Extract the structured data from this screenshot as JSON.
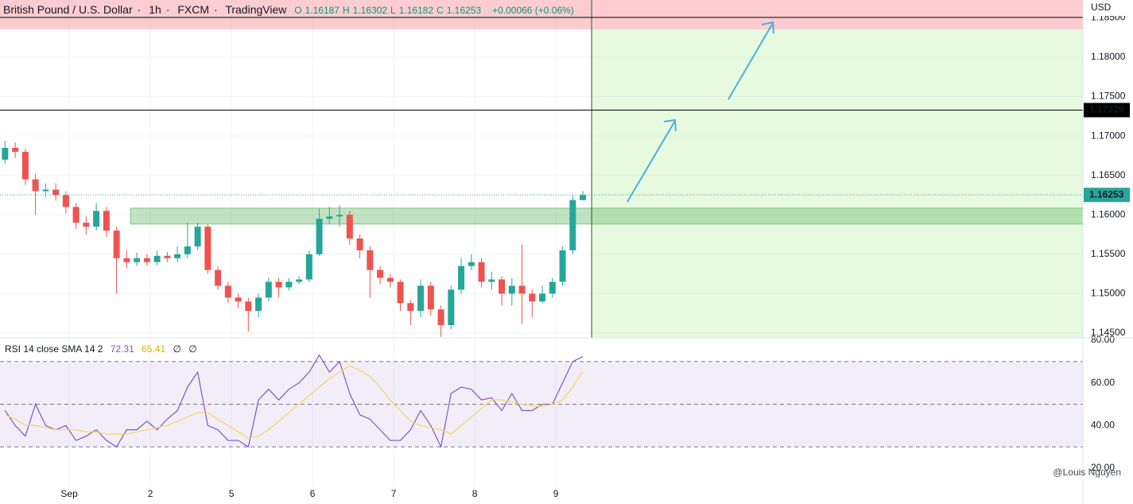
{
  "header": {
    "symbol": "British Pound / U.S. Dollar",
    "interval": "1h",
    "source": "FXCM",
    "platform": "TradingView",
    "ohlc_prefixes": [
      "O",
      "H",
      "L",
      "C"
    ],
    "change": "+0.00066 (+0.06%)"
  },
  "currency": "USD",
  "watermark": "@Louis Nguyen",
  "chart_data": [
    {
      "type": "candlestick",
      "up_color": "#26a69a",
      "down_color": "#ef5350",
      "x": [
        1.5,
        4.5,
        7.5,
        10.5,
        13.5,
        16.5,
        19.5,
        22.5,
        25.5,
        28.5,
        31.5,
        34.5,
        37.5,
        40.5,
        43.5,
        46.5,
        49.5,
        52.5,
        55.5,
        58.5,
        61.5,
        64.5,
        67.5,
        70.5,
        73.5,
        76.5,
        79.5,
        82.5,
        85.5,
        88.5,
        91.5,
        94.5,
        97.5,
        100.5,
        103.5,
        106.5,
        109.5,
        112.5,
        115.5,
        118.5,
        121.5,
        124.5,
        127.5,
        130.5,
        133.5,
        136.5,
        139.5,
        142.5,
        145.5,
        148.5,
        151.5,
        154.5,
        157.5,
        160.5,
        163.5,
        166.5,
        169.5,
        172.5
      ],
      "open": [
        1.167,
        1.1685,
        1.168,
        1.1645,
        1.163,
        1.1632,
        1.1625,
        1.161,
        1.159,
        1.1585,
        1.1605,
        1.158,
        1.1545,
        1.154,
        1.1545,
        1.154,
        1.1548,
        1.1545,
        1.155,
        1.156,
        1.1585,
        1.153,
        1.151,
        1.1495,
        1.149,
        1.1478,
        1.1495,
        1.1515,
        1.1508,
        1.1515,
        1.1518,
        1.155,
        1.1595,
        1.1598,
        1.16,
        1.157,
        1.1555,
        1.153,
        1.152,
        1.1515,
        1.1488,
        1.1478,
        1.151,
        1.148,
        1.146,
        1.1505,
        1.1535,
        1.154,
        1.1515,
        1.1518,
        1.15,
        1.151,
        1.15,
        1.149,
        1.15,
        1.1515,
        1.1555,
        1.16187
      ],
      "high": [
        1.1694,
        1.1692,
        1.1684,
        1.1652,
        1.164,
        1.164,
        1.163,
        1.1615,
        1.1598,
        1.1615,
        1.161,
        1.1585,
        1.1555,
        1.1552,
        1.155,
        1.1555,
        1.1553,
        1.156,
        1.159,
        1.159,
        1.1588,
        1.1535,
        1.1515,
        1.15,
        1.1495,
        1.15,
        1.152,
        1.152,
        1.152,
        1.1522,
        1.1555,
        1.1608,
        1.161,
        1.1612,
        1.1605,
        1.1575,
        1.156,
        1.1535,
        1.1525,
        1.1518,
        1.1492,
        1.1518,
        1.1515,
        1.1485,
        1.151,
        1.1545,
        1.155,
        1.1545,
        1.1528,
        1.1522,
        1.152,
        1.1562,
        1.1505,
        1.151,
        1.152,
        1.156,
        1.1625,
        1.16302
      ],
      "low": [
        1.1665,
        1.1672,
        1.1638,
        1.16,
        1.1622,
        1.1618,
        1.1602,
        1.1582,
        1.1575,
        1.158,
        1.1572,
        1.15,
        1.1532,
        1.1535,
        1.1535,
        1.1536,
        1.154,
        1.154,
        1.1545,
        1.1555,
        1.1525,
        1.1505,
        1.1488,
        1.1482,
        1.1452,
        1.147,
        1.149,
        1.1495,
        1.1504,
        1.1512,
        1.1515,
        1.1548,
        1.1588,
        1.1585,
        1.1562,
        1.1545,
        1.1495,
        1.1512,
        1.1508,
        1.1478,
        1.146,
        1.147,
        1.1472,
        1.1445,
        1.1455,
        1.15,
        1.153,
        1.1508,
        1.1505,
        1.1485,
        1.1485,
        1.1462,
        1.147,
        1.1488,
        1.1495,
        1.151,
        1.155,
        1.16182
      ],
      "close": [
        1.1685,
        1.168,
        1.1645,
        1.163,
        1.1632,
        1.1625,
        1.161,
        1.159,
        1.1585,
        1.1605,
        1.158,
        1.1545,
        1.154,
        1.1545,
        1.154,
        1.1548,
        1.1545,
        1.155,
        1.156,
        1.1585,
        1.153,
        1.151,
        1.1495,
        1.149,
        1.1478,
        1.1495,
        1.1515,
        1.1508,
        1.1515,
        1.1518,
        1.155,
        1.1595,
        1.1598,
        1.16,
        1.157,
        1.1555,
        1.153,
        1.152,
        1.1515,
        1.1488,
        1.1478,
        1.151,
        1.148,
        1.146,
        1.1505,
        1.1535,
        1.154,
        1.1515,
        1.1518,
        1.15,
        1.151,
        1.15,
        1.149,
        1.15,
        1.1515,
        1.1555,
        1.16187,
        1.16253
      ],
      "xlim": [
        0,
        320.5
      ],
      "ylim": [
        1.14439,
        1.18726
      ],
      "yticks": [
        {
          "value": 1.145,
          "label": "1.14500"
        },
        {
          "value": 1.15,
          "label": "1.15000"
        },
        {
          "value": 1.155,
          "label": "1.15500"
        },
        {
          "value": 1.16,
          "label": "1.16000"
        },
        {
          "value": 1.165,
          "label": "1.16500"
        },
        {
          "value": 1.17,
          "label": "1.17000"
        },
        {
          "value": 1.175,
          "label": "1.17500"
        },
        {
          "value": 1.18,
          "label": "1.18000"
        },
        {
          "value": 1.185,
          "label": "1.18500"
        }
      ],
      "xticks": [
        {
          "value": 20.5,
          "label": "Sep"
        },
        {
          "value": 44.5,
          "label": "2"
        },
        {
          "value": 68.5,
          "label": "5"
        },
        {
          "value": 92.5,
          "label": "6"
        },
        {
          "value": 116.5,
          "label": "7"
        },
        {
          "value": 140.5,
          "label": "8"
        },
        {
          "value": 164.5,
          "label": "9"
        }
      ],
      "grid": true,
      "hlines": [
        1.17329,
        1.18505
      ],
      "vline": 175.1,
      "zones": [
        {
          "x0": 175.1,
          "y0": 1.14439,
          "y1": 1.18353,
          "color": "rgba(120,230,80,0.18)"
        },
        {
          "x0": 0,
          "y0": 1.18353,
          "y1": 1.18726,
          "color": "rgba(242,54,69,0.25)"
        },
        {
          "x0": 38.6,
          "y0": 1.15883,
          "y1": 1.16085,
          "color": "rgba(76,175,80,0.35)"
        }
      ]
    },
    {
      "type": "line",
      "title": "RSI 14 close SMA 14 2",
      "nulls": [
        "∅",
        "∅"
      ],
      "series": [
        {
          "name": "RSI",
          "color": "#7e57c2",
          "values": [
            47,
            40,
            35,
            50,
            40,
            38,
            40,
            33,
            35,
            38,
            33,
            30,
            38,
            38,
            42,
            38,
            43,
            47,
            58,
            65,
            40,
            38,
            33,
            33,
            30,
            52,
            57,
            52,
            57,
            60,
            65,
            73,
            65,
            70,
            55,
            45,
            43,
            38,
            33,
            33,
            38,
            47,
            40,
            30,
            55,
            58,
            57,
            52,
            53,
            47,
            55,
            47,
            47,
            50,
            50,
            60,
            70,
            72.31
          ]
        },
        {
          "name": "SMA",
          "color": "#f7d65a",
          "values": [
            45,
            43,
            40,
            40,
            39,
            38,
            38,
            38,
            37,
            37,
            36,
            36,
            36,
            37,
            38,
            39,
            40,
            42,
            44,
            46,
            46,
            43,
            40,
            37,
            34,
            35,
            38,
            42,
            46,
            50,
            54,
            58,
            62,
            65,
            68,
            66,
            63,
            58,
            52,
            47,
            42,
            40,
            39,
            38,
            36,
            40,
            44,
            48,
            52,
            52,
            51,
            50,
            49,
            49,
            50,
            52,
            58,
            65.41
          ]
        }
      ],
      "ylim": [
        11.4,
        81.1
      ],
      "yticks": [
        {
          "value": 20,
          "label": "20.00"
        },
        {
          "value": 40,
          "label": "40.00"
        },
        {
          "value": 60,
          "label": "60.00"
        },
        {
          "value": 80,
          "label": "80.00"
        }
      ],
      "bands": [
        30,
        50,
        70
      ]
    }
  ]
}
